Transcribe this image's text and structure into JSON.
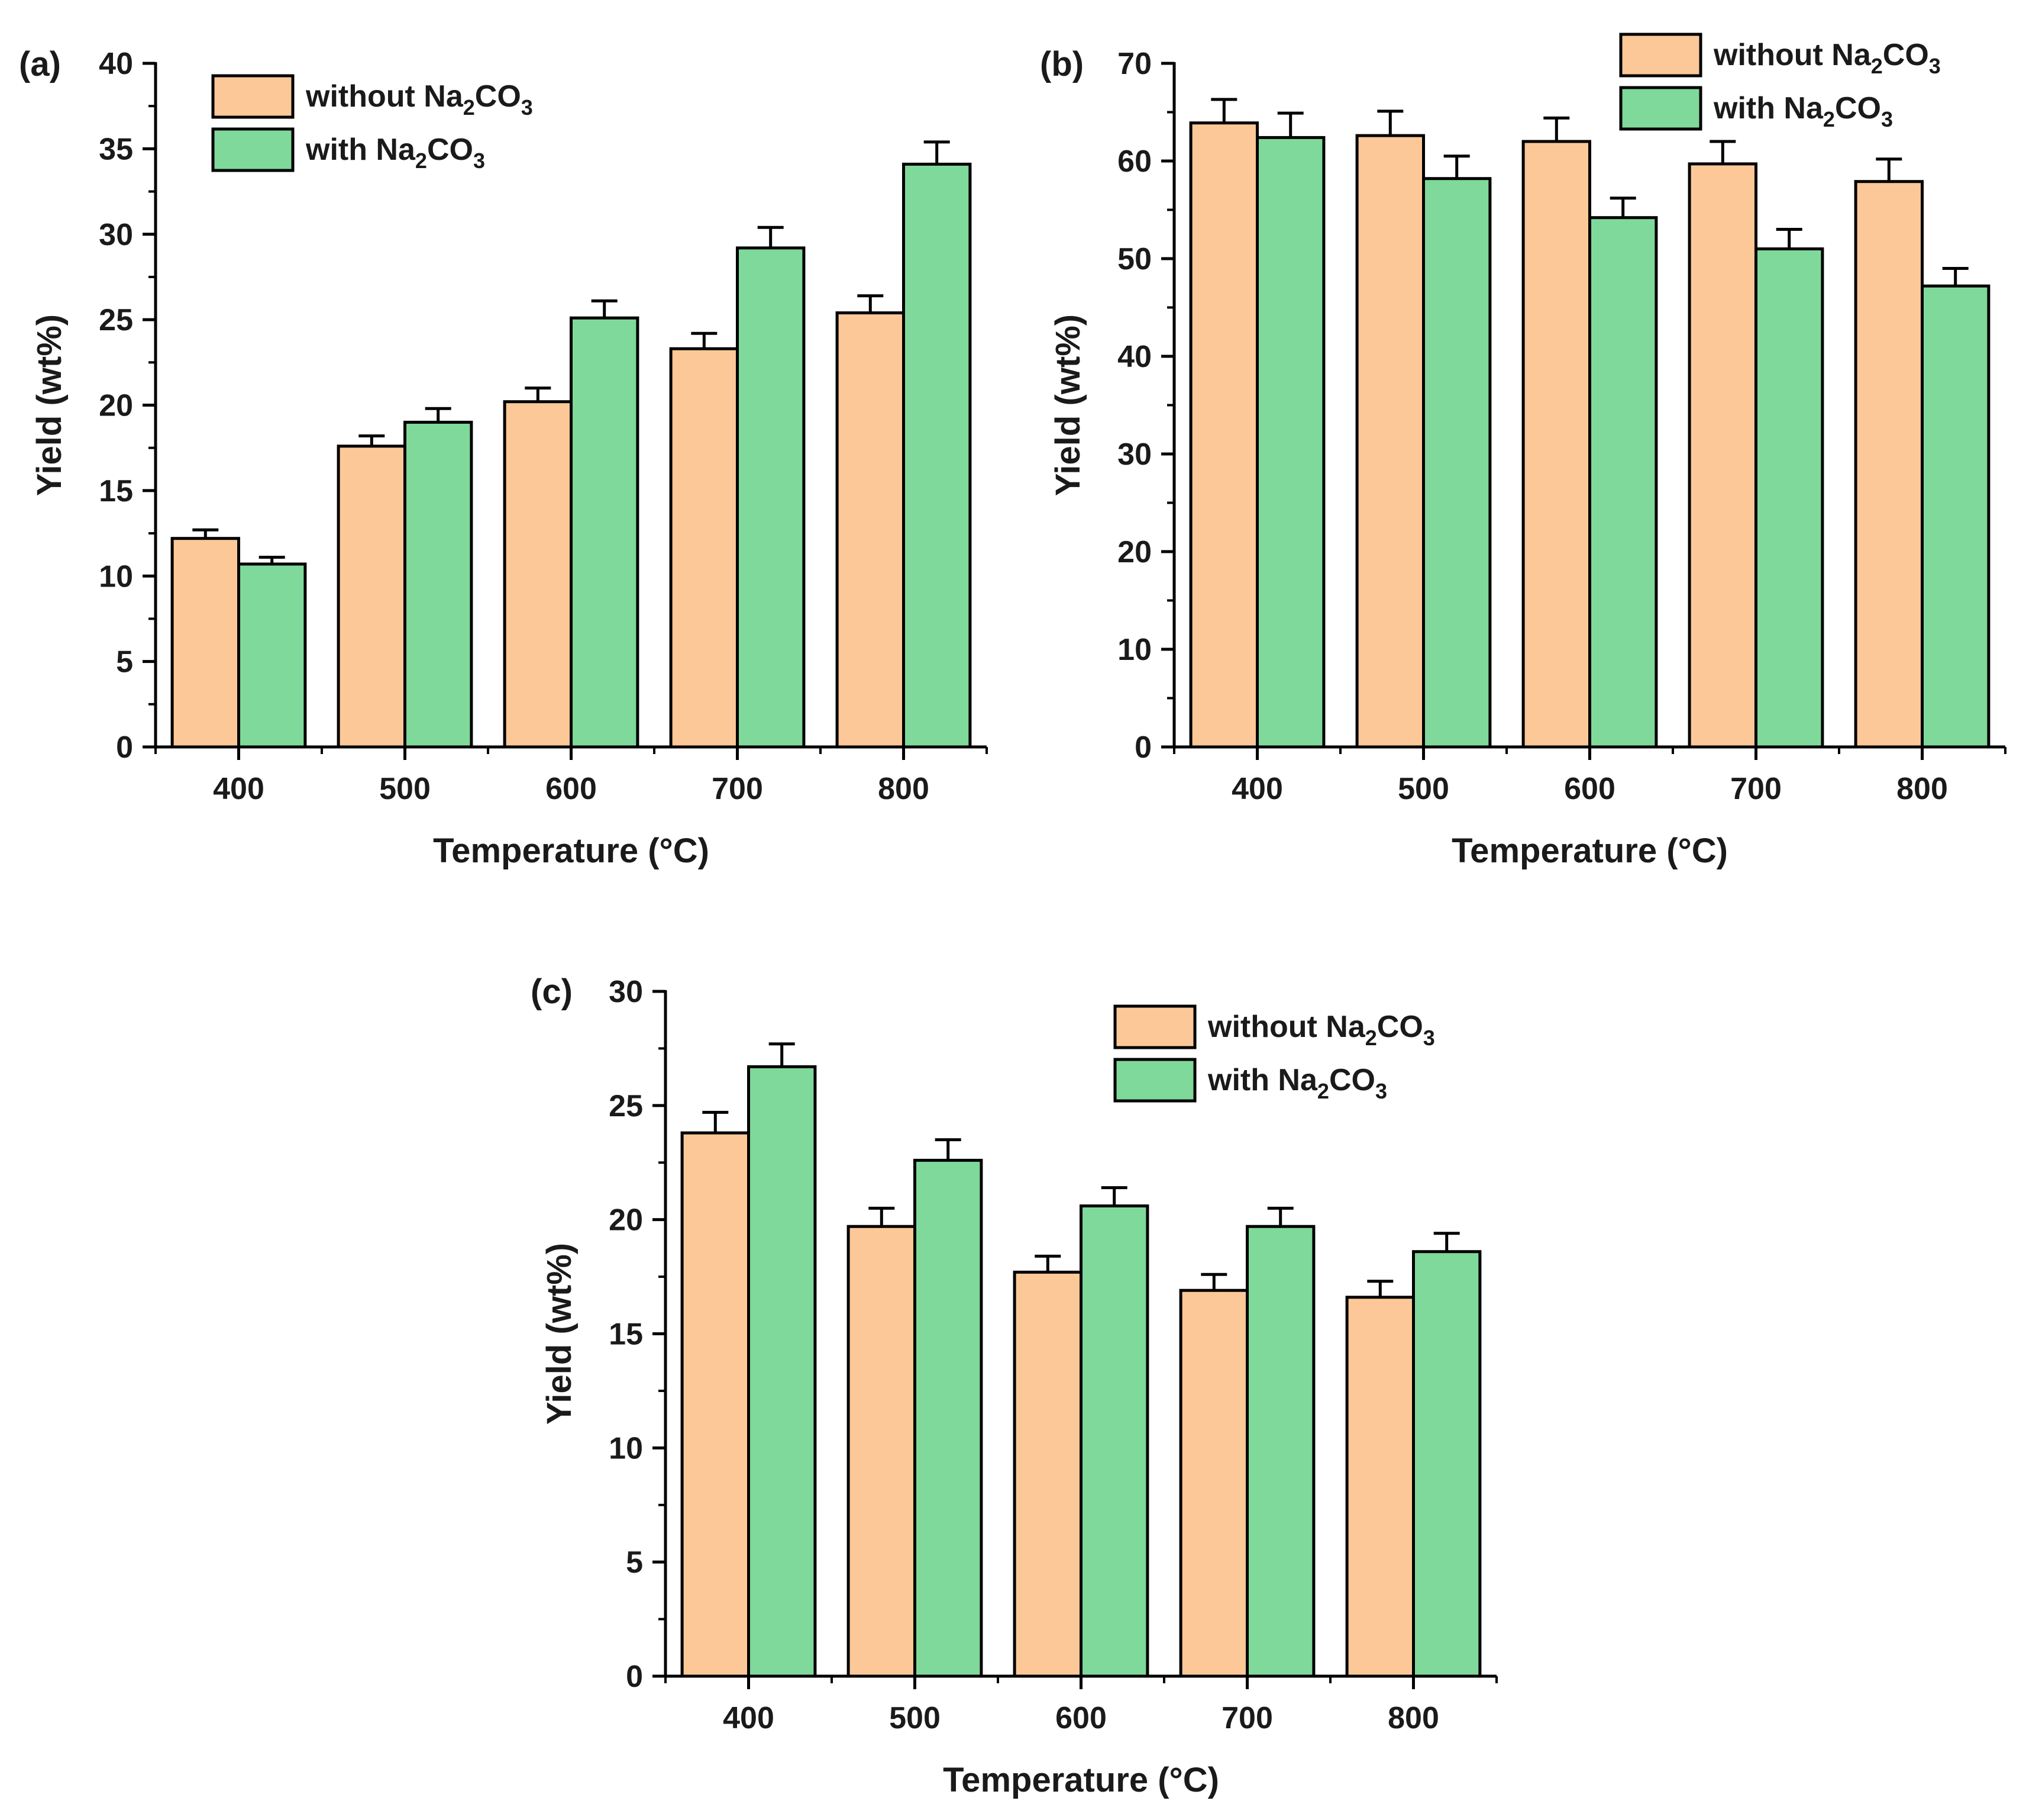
{
  "figure": {
    "colors": {
      "without": "#fdc898",
      "with": "#7fd99a",
      "stroke": "#000000"
    }
  },
  "chart_data": [
    {
      "panel": "(a)",
      "type": "bar",
      "categories": [
        "400",
        "500",
        "600",
        "700",
        "800"
      ],
      "xlabel": "Temperature (°C)",
      "ylabel": "Yield (wt%)",
      "ylim": [
        0,
        40
      ],
      "yticks": [
        0,
        5,
        10,
        15,
        20,
        25,
        30,
        35,
        40
      ],
      "legend_position": "top-left",
      "series": [
        {
          "name": "without Na₂CO₃",
          "label_main": "without Na",
          "label_sub1": "2",
          "label_mid": "CO",
          "label_sub2": "3",
          "values": [
            12.2,
            17.6,
            20.2,
            23.3,
            25.4
          ],
          "errors": [
            0.5,
            0.6,
            0.8,
            0.9,
            1.0
          ]
        },
        {
          "name": "with Na₂CO₃",
          "label_main": "with Na",
          "label_sub1": "2",
          "label_mid": "CO",
          "label_sub2": "3",
          "values": [
            10.7,
            19.0,
            25.1,
            29.2,
            34.1
          ],
          "errors": [
            0.4,
            0.8,
            1.0,
            1.2,
            1.3
          ]
        }
      ]
    },
    {
      "panel": "(b)",
      "type": "bar",
      "categories": [
        "400",
        "500",
        "600",
        "700",
        "800"
      ],
      "xlabel": "Temperature (°C)",
      "ylabel": "Yield (wt%)",
      "ylim": [
        0,
        70
      ],
      "yticks": [
        0,
        10,
        20,
        30,
        40,
        50,
        60,
        70
      ],
      "legend_position": "top-right",
      "series": [
        {
          "name": "without Na₂CO₃",
          "label_main": "without Na",
          "label_sub1": "2",
          "label_mid": "CO",
          "label_sub2": "3",
          "values": [
            63.9,
            62.6,
            62.0,
            59.7,
            57.9
          ],
          "errors": [
            2.4,
            2.5,
            2.4,
            2.3,
            2.3
          ]
        },
        {
          "name": "with Na₂CO₃",
          "label_main": "with Na",
          "label_sub1": "2",
          "label_mid": "CO",
          "label_sub2": "3",
          "values": [
            62.4,
            58.2,
            54.2,
            51.0,
            47.2
          ],
          "errors": [
            2.5,
            2.3,
            2.0,
            2.0,
            1.8
          ]
        }
      ]
    },
    {
      "panel": "(c)",
      "type": "bar",
      "categories": [
        "400",
        "500",
        "600",
        "700",
        "800"
      ],
      "xlabel": "Temperature (°C)",
      "ylabel": "Yield (wt%)",
      "ylim": [
        0,
        30
      ],
      "yticks": [
        0,
        5,
        10,
        15,
        20,
        25,
        30
      ],
      "legend_position": "top-right",
      "series": [
        {
          "name": "without Na₂CO₃",
          "label_main": "without Na",
          "label_sub1": "2",
          "label_mid": "CO",
          "label_sub2": "3",
          "values": [
            23.8,
            19.7,
            17.7,
            16.9,
            16.6
          ],
          "errors": [
            0.9,
            0.8,
            0.7,
            0.7,
            0.7
          ]
        },
        {
          "name": "with Na₂CO₃",
          "label_main": "with Na",
          "label_sub1": "2",
          "label_mid": "CO",
          "label_sub2": "3",
          "values": [
            26.7,
            22.6,
            20.6,
            19.7,
            18.6
          ],
          "errors": [
            1.0,
            0.9,
            0.8,
            0.8,
            0.8
          ]
        }
      ]
    }
  ]
}
